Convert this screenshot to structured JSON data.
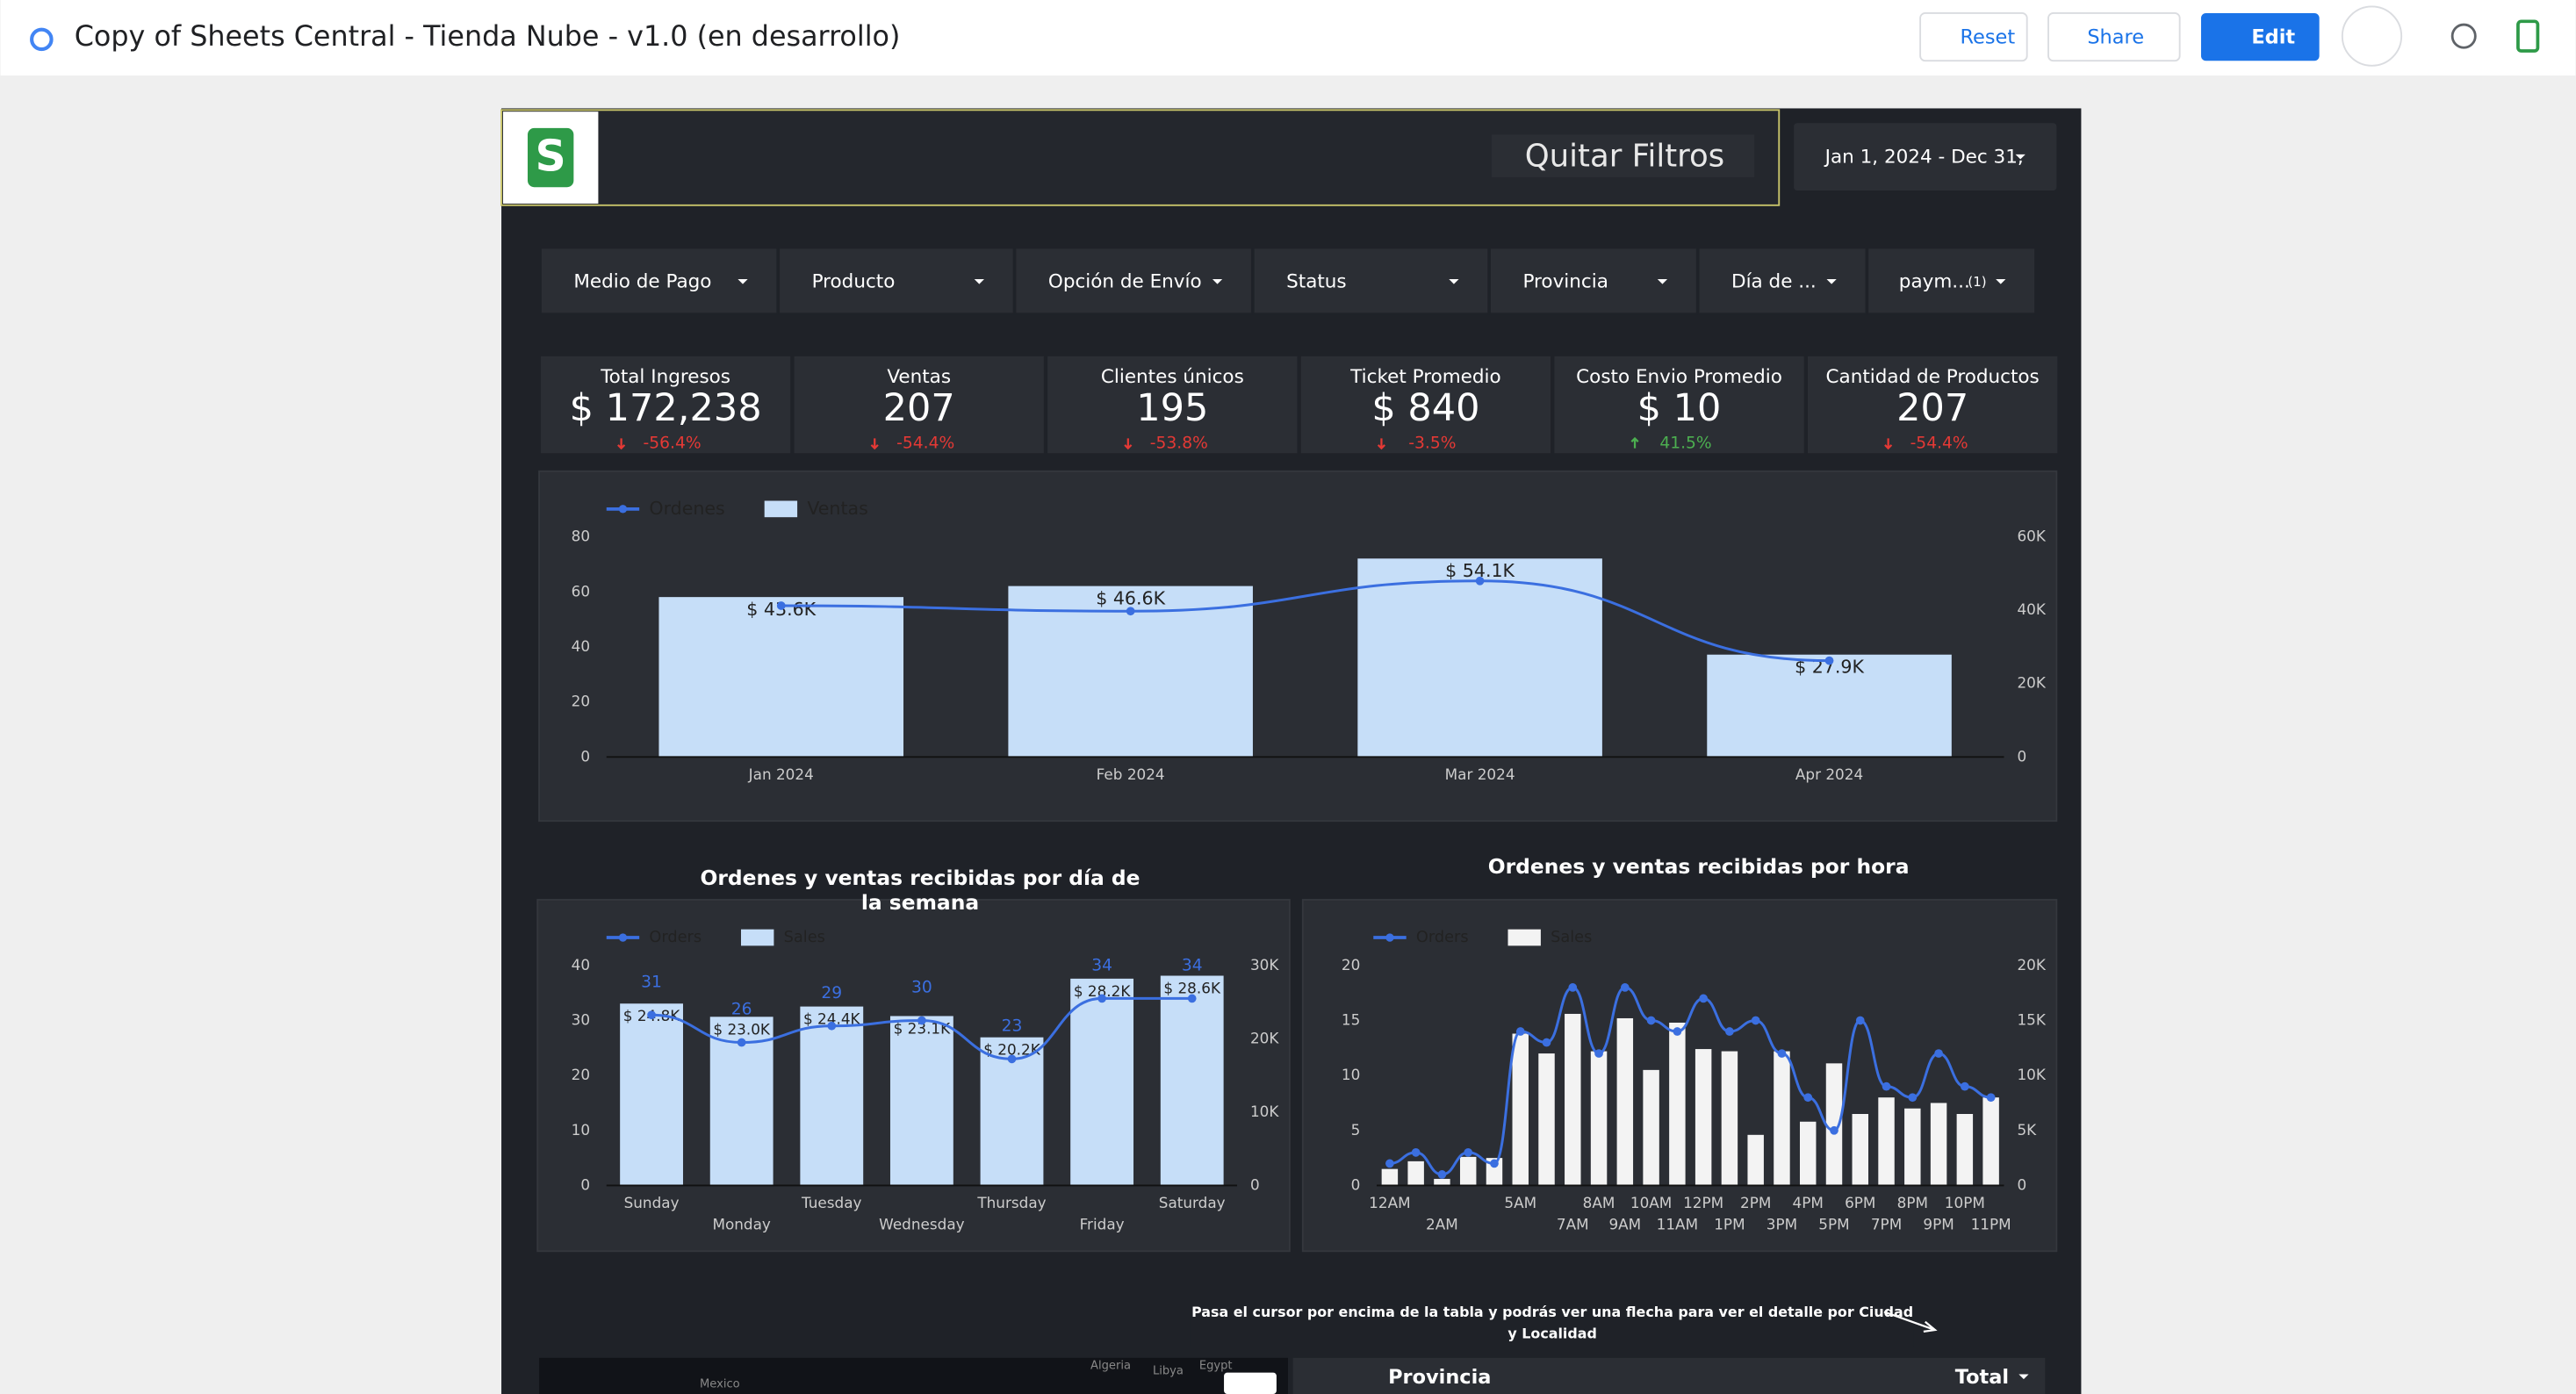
{
  "header": {
    "title": "Copy of Sheets Central - Tienda Nube - v1.0 (en desarrollo)",
    "buttons": [
      "Reset",
      "Share",
      "Edit"
    ]
  },
  "banner": {
    "clear_filters": "Quitar Filtros",
    "date_range": "Jan 1, 2024 - Dec 31,"
  },
  "filters": [
    "Medio de Pago",
    "Producto",
    "Opción de Envío",
    "Status",
    "Provincia",
    "Día de ...",
    "paym..."
  ],
  "filter_badge": "(1)",
  "kpis": [
    {
      "label": "Total Ingresos",
      "value": "$ 172,238",
      "delta": "-56.4%",
      "trend": "down"
    },
    {
      "label": "Ventas",
      "value": "207",
      "delta": "-54.4%",
      "trend": "down"
    },
    {
      "label": "Clientes únicos",
      "value": "195",
      "delta": "-53.8%",
      "trend": "down"
    },
    {
      "label": "Ticket Promedio",
      "value": "$ 840",
      "delta": "-3.5%",
      "trend": "down"
    },
    {
      "label": "Costo Envio Promedio",
      "value": "$ 10",
      "delta": "41.5%",
      "trend": "up"
    },
    {
      "label": "Cantidad de Productos",
      "value": "207",
      "delta": "-54.4%",
      "trend": "down"
    }
  ],
  "chart_data": [
    {
      "type": "combo",
      "categories": [
        "Jan 2024",
        "Feb 2024",
        "Mar 2024",
        "Apr 2024"
      ],
      "series": [
        {
          "name": "Ordenes",
          "kind": "line",
          "axis": "y",
          "color": "#3b6fe0",
          "values": [
            55,
            53,
            64,
            35
          ]
        },
        {
          "name": "Ventas",
          "kind": "bar",
          "axis": "y2",
          "color": "#c6def8",
          "values": [
            43600,
            46600,
            54100,
            27900
          ],
          "value_labels": [
            "$ 43.6K",
            "$ 46.6K",
            "$ 54.1K",
            "$ 27.9K"
          ]
        }
      ],
      "ylim": [
        0,
        80
      ],
      "yticks": [
        0,
        20,
        40,
        60,
        80
      ],
      "y2lim": [
        0,
        60000
      ],
      "y2ticks": [
        0,
        {
          "value": 20000,
          "label": "20K"
        },
        {
          "value": 40000,
          "label": "40K"
        },
        {
          "value": 60000,
          "label": "60K"
        }
      ]
    },
    {
      "type": "combo",
      "title": "Ordenes y ventas recibidas por día de la semana",
      "categories": [
        "Sunday",
        "Monday",
        "Tuesday",
        "Wednesday",
        "Thursday",
        "Friday",
        "Saturday"
      ],
      "series": [
        {
          "name": "Orders",
          "kind": "line",
          "axis": "y",
          "color": "#3b6fe0",
          "data_labels": true,
          "values": [
            31,
            26,
            29,
            30,
            23,
            34,
            34
          ]
        },
        {
          "name": "Sales",
          "kind": "bar",
          "axis": "y2",
          "color": "#c6def8",
          "values": [
            24800,
            23000,
            24400,
            23100,
            20200,
            28200,
            28600
          ],
          "value_labels": [
            "$ 24.8K",
            "$ 23.0K",
            "$ 24.4K",
            "$ 23.1K",
            "$ 20.2K",
            "$ 28.2K",
            "$ 28.6K"
          ]
        }
      ],
      "ylim": [
        0,
        40
      ],
      "yticks": [
        0,
        10,
        20,
        30,
        40
      ],
      "y2lim": [
        0,
        30000
      ],
      "y2ticks": [
        0,
        {
          "value": 10000,
          "label": "10K"
        },
        {
          "value": 20000,
          "label": "20K"
        },
        {
          "value": 30000,
          "label": "30K"
        }
      ]
    },
    {
      "type": "combo",
      "title": "Ordenes y ventas recibidas por hora",
      "categories": [
        "12AM",
        null,
        "2AM",
        null,
        null,
        "5AM",
        null,
        "7AM",
        "8AM",
        "9AM",
        "10AM",
        "11AM",
        "12PM",
        "1PM",
        "2PM",
        "3PM",
        "4PM",
        "5PM",
        "6PM",
        "7PM",
        "8PM",
        "9PM",
        "10PM",
        "11PM"
      ],
      "series": [
        {
          "name": "Orders",
          "kind": "line",
          "axis": "y",
          "color": "#3b6fe0",
          "values": [
            2,
            3,
            1,
            3,
            2,
            14,
            13,
            18,
            12,
            18,
            15,
            14,
            17,
            14,
            15,
            12,
            8,
            5,
            15,
            9,
            8,
            12,
            9,
            8
          ]
        },
        {
          "name": "Sales",
          "kind": "bar",
          "axis": "y2",
          "color": "#f3f3f3",
          "values": [
            1500,
            2200,
            600,
            2600,
            2500,
            13800,
            12000,
            15600,
            12200,
            15200,
            10500,
            14800,
            12400,
            12200,
            4600,
            12200,
            5800,
            11100,
            6500,
            8000,
            7000,
            7500,
            6500,
            8000
          ]
        }
      ],
      "ylim": [
        0,
        20
      ],
      "yticks": [
        0,
        5,
        10,
        15,
        20
      ],
      "y2lim": [
        0,
        20000
      ],
      "y2ticks": [
        0,
        {
          "value": 5000,
          "label": "5K"
        },
        {
          "value": 10000,
          "label": "10K"
        },
        {
          "value": 15000,
          "label": "15K"
        },
        {
          "value": 20000,
          "label": "20K"
        }
      ]
    }
  ],
  "note": "Pasa el cursor por encima de la tabla y podrás ver una flecha para ver el detalle por Ciudad y Localidad",
  "table": {
    "columns": [
      "Provincia",
      "Total"
    ]
  },
  "map": {
    "labels": [
      "Algeria",
      "Libya",
      "Egypt",
      "Mexico"
    ]
  }
}
